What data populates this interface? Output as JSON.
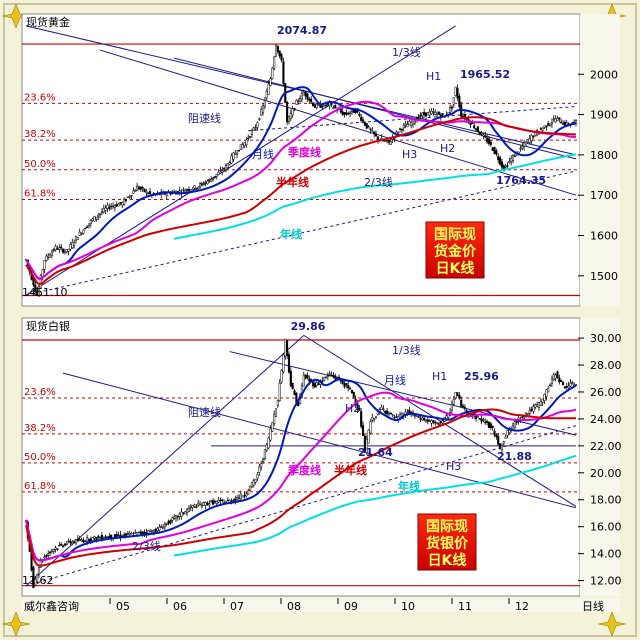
{
  "panel_titles": {
    "gold": "现货黄金",
    "silver": "现货白银"
  },
  "footer": {
    "brand": "威尔鑫咨询",
    "period": "日线",
    "months": [
      "05",
      "06",
      "07",
      "08",
      "09",
      "10",
      "11",
      "12"
    ]
  },
  "fib_labels": [
    "23.6%",
    "38.2%",
    "50.0%",
    "61.8%"
  ],
  "colors": {
    "up": "#ffffff",
    "down": "#000000",
    "ma_month": "#0018c0",
    "ma_quarter": "#e000e0",
    "ma_half": "#d00000",
    "ma_year": "#00e0e0",
    "channel": "#1a1a8c",
    "fib": "#d00000",
    "bg": "#ffffff",
    "frame": "#f4f2d8"
  },
  "chart_data": [
    {
      "type": "candlestick",
      "title": "现货黄金",
      "ylim": [
        1435,
        2085
      ],
      "yticks": [
        1500,
        1600,
        1700,
        1800,
        1900,
        2000
      ],
      "high_label": "2074.87",
      "low_label": "1451.10",
      "point_labels": {
        "h1": "H1",
        "h1_value": "1965.52",
        "h2": "H2",
        "h3": "H3",
        "low2": "1764.35"
      },
      "line_labels": {
        "resistance": "阻速线",
        "one_third": "1/3线",
        "two_third": "2/3线",
        "month": "月线",
        "quarter": "季度线",
        "half": "半年线",
        "year": "年线"
      },
      "stamp": [
        "国际现",
        "货金价",
        "日K线"
      ],
      "path": [
        [
          0,
          1540
        ],
        [
          6,
          1451.1
        ],
        [
          10,
          1540
        ],
        [
          16,
          1570
        ],
        [
          22,
          1560
        ],
        [
          28,
          1600
        ],
        [
          36,
          1640
        ],
        [
          44,
          1670
        ],
        [
          52,
          1680
        ],
        [
          60,
          1720
        ],
        [
          68,
          1700
        ],
        [
          76,
          1705
        ],
        [
          84,
          1710
        ],
        [
          92,
          1720
        ],
        [
          100,
          1740
        ],
        [
          108,
          1770
        ],
        [
          112,
          1800
        ],
        [
          118,
          1830
        ],
        [
          124,
          1870
        ],
        [
          128,
          1920
        ],
        [
          132,
          1990
        ],
        [
          135,
          2074.87
        ],
        [
          138,
          2030
        ],
        [
          141,
          1880
        ],
        [
          146,
          1930
        ],
        [
          150,
          1955
        ],
        [
          156,
          1920
        ],
        [
          164,
          1925
        ],
        [
          172,
          1900
        ],
        [
          178,
          1910
        ],
        [
          184,
          1870
        ],
        [
          190,
          1840
        ],
        [
          196,
          1830
        ],
        [
          202,
          1865
        ],
        [
          208,
          1880
        ],
        [
          214,
          1900
        ],
        [
          220,
          1905
        ],
        [
          226,
          1895
        ],
        [
          230,
          1920
        ],
        [
          232,
          1965.52
        ],
        [
          235,
          1900
        ],
        [
          240,
          1880
        ],
        [
          246,
          1850
        ],
        [
          250,
          1830
        ],
        [
          254,
          1800
        ],
        [
          258,
          1764.35
        ],
        [
          262,
          1790
        ],
        [
          268,
          1820
        ],
        [
          274,
          1850
        ],
        [
          280,
          1870
        ],
        [
          286,
          1890
        ],
        [
          292,
          1875
        ],
        [
          297,
          1880
        ]
      ]
    },
    {
      "type": "candlestick",
      "title": "现货白银",
      "ylim": [
        11.3,
        30.6
      ],
      "yticks": [
        12,
        14,
        16,
        18,
        20,
        22,
        24,
        26,
        28,
        30
      ],
      "high_label": "29.86",
      "low_label": "11.62",
      "point_labels": {
        "h1": "H1",
        "h1_value": "25.96",
        "h2": "H2",
        "h3": "H3",
        "mid_low": "21.64",
        "low2": "21.88"
      },
      "line_labels": {
        "resistance": "阻速线",
        "one_third": "1/3线",
        "two_third": "2/3线",
        "month": "月线",
        "quarter": "季度线",
        "half": "半年线",
        "year": "年线"
      },
      "stamp": [
        "国际现",
        "货银价",
        "日K线"
      ],
      "path": [
        [
          0,
          16.5
        ],
        [
          4,
          11.62
        ],
        [
          8,
          13.5
        ],
        [
          14,
          14.3
        ],
        [
          22,
          14.8
        ],
        [
          30,
          15.0
        ],
        [
          40,
          15.2
        ],
        [
          50,
          15.3
        ],
        [
          60,
          15.5
        ],
        [
          70,
          15.7
        ],
        [
          80,
          16.6
        ],
        [
          90,
          17.5
        ],
        [
          100,
          17.8
        ],
        [
          110,
          17.9
        ],
        [
          118,
          18.4
        ],
        [
          124,
          19.5
        ],
        [
          130,
          22.0
        ],
        [
          136,
          25.5
        ],
        [
          140,
          29.86
        ],
        [
          143,
          26.5
        ],
        [
          147,
          25.0
        ],
        [
          150,
          27.2
        ],
        [
          156,
          26.5
        ],
        [
          164,
          27.3
        ],
        [
          170,
          26.8
        ],
        [
          176,
          26.0
        ],
        [
          180,
          24.5
        ],
        [
          183,
          21.64
        ],
        [
          186,
          23.8
        ],
        [
          192,
          24.8
        ],
        [
          200,
          24.0
        ],
        [
          206,
          24.5
        ],
        [
          214,
          24.0
        ],
        [
          222,
          23.6
        ],
        [
          228,
          24.2
        ],
        [
          232,
          25.96
        ],
        [
          236,
          24.8
        ],
        [
          242,
          24.2
        ],
        [
          248,
          23.8
        ],
        [
          252,
          23.2
        ],
        [
          256,
          21.88
        ],
        [
          260,
          23.0
        ],
        [
          266,
          24.0
        ],
        [
          272,
          24.6
        ],
        [
          278,
          25.2
        ],
        [
          283,
          26.6
        ],
        [
          286,
          27.4
        ],
        [
          290,
          26.4
        ],
        [
          297,
          26.6
        ]
      ]
    }
  ]
}
